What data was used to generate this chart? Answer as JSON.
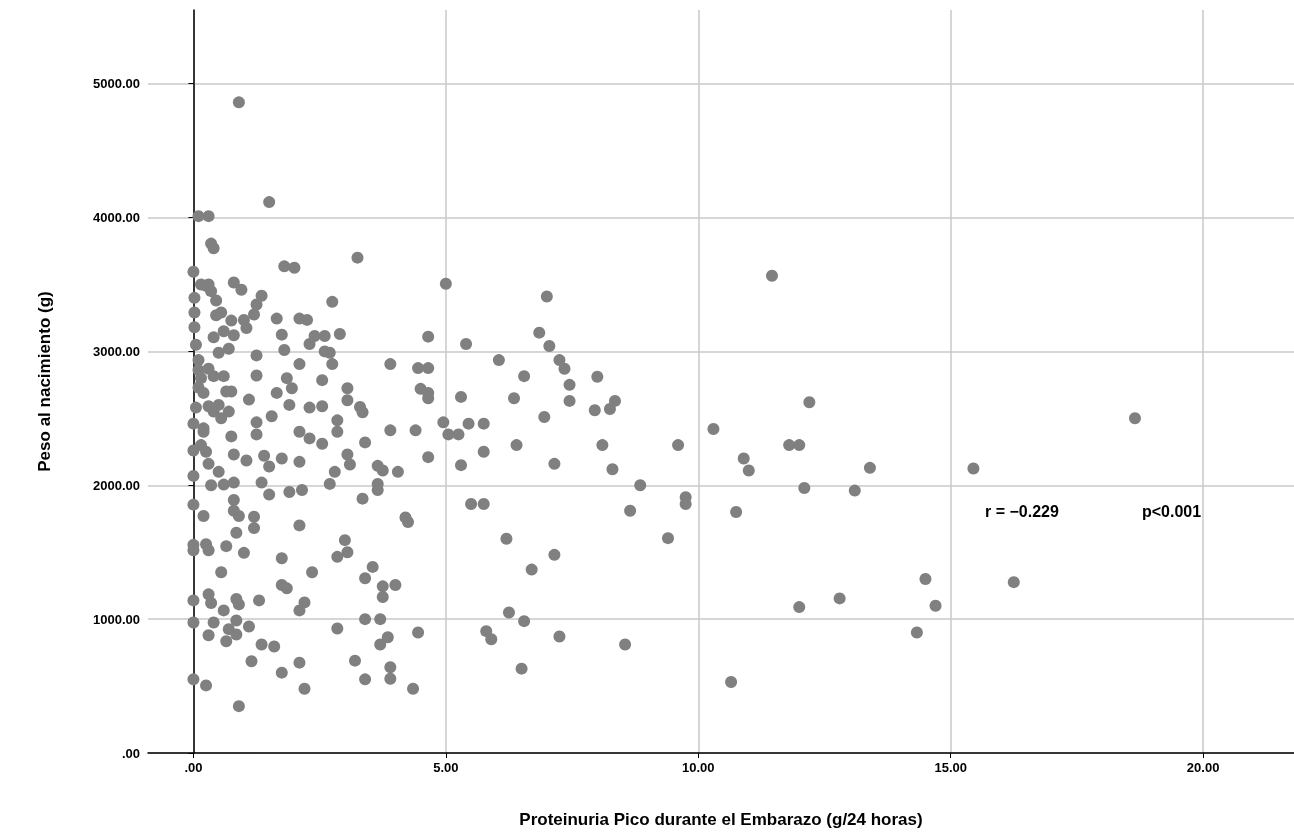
{
  "chart_data": {
    "type": "scatter",
    "xlabel": "Proteinuria Pico durante el Embarazo (g/24 horas)",
    "ylabel": "Peso al nacimiento (g)",
    "annotations": [
      "r = −0.229",
      "p<0.001"
    ],
    "xlim": [
      -0.9,
      21.8
    ],
    "ylim": [
      0,
      5550
    ],
    "xticks": [
      {
        "value": 0,
        "label": ".00"
      },
      {
        "value": 5,
        "label": "5.00"
      },
      {
        "value": 10,
        "label": "10.00"
      },
      {
        "value": 15,
        "label": "15.00"
      },
      {
        "value": 20,
        "label": "20.00"
      }
    ],
    "yticks": [
      {
        "value": 0,
        "label": ".00"
      },
      {
        "value": 1000,
        "label": "1000.00"
      },
      {
        "value": 2000,
        "label": "2000.00"
      },
      {
        "value": 3000,
        "label": "3000.00"
      },
      {
        "value": 4000,
        "label": "4000.00"
      },
      {
        "value": 5000,
        "label": "5000.00"
      }
    ],
    "grid": true,
    "marker": "circle",
    "series": [
      {
        "color": "#808080",
        "x": [
          18.65,
          15.45,
          16.25,
          14.5,
          14.7,
          14.33,
          13.4,
          13.1,
          12.8,
          12.0,
          12.2,
          12.1,
          11.46,
          11.8,
          12.0,
          10.9,
          11.0,
          10.75,
          10.65,
          10.3,
          9.6,
          9.75,
          9.75,
          9.4,
          8.85,
          8.65,
          8.55,
          8.35,
          8.25,
          8.3,
          8.1,
          8.0,
          7.95,
          7.45,
          7.45,
          7.35,
          7.25,
          7.05,
          6.85,
          7.0,
          6.95,
          7.15,
          7.15,
          7.25,
          6.7,
          6.55,
          6.4,
          6.35,
          6.25,
          6.55,
          6.5,
          6.2,
          6.05,
          5.75,
          5.75,
          5.75,
          5.45,
          5.5,
          5.3,
          5.3,
          5.4,
          5.0,
          5.8,
          5.9,
          5.25,
          5.05,
          4.95,
          4.65,
          4.65,
          4.65,
          4.65,
          4.65,
          4.45,
          4.5,
          4.4,
          4.45,
          4.35,
          4.25,
          4.2,
          4.05,
          4.0,
          3.9,
          3.9,
          3.85,
          3.9,
          3.9,
          3.75,
          3.75,
          3.7,
          3.7,
          3.65,
          3.75,
          3.65,
          3.65,
          3.55,
          3.4,
          3.4,
          3.4,
          3.4,
          3.35,
          3.3,
          3.25,
          3.35,
          3.2,
          3.05,
          3.05,
          3.1,
          3.05,
          3.0,
          3.05,
          2.85,
          2.85,
          2.85,
          2.85,
          2.9,
          2.8,
          2.7,
          2.75,
          2.7,
          2.75,
          2.6,
          2.55,
          2.55,
          2.6,
          2.55,
          2.4,
          2.3,
          2.35,
          2.3,
          2.3,
          2.1,
          2.1,
          2.25,
          2.1,
          2.1,
          2.15,
          2.1,
          2.1,
          2.1,
          2.2,
          2.2,
          2.0,
          1.8,
          1.9,
          1.85,
          1.75,
          1.75,
          1.75,
          1.75,
          1.85,
          1.95,
          1.8,
          1.75,
          1.65,
          1.9,
          1.65,
          1.55,
          1.5,
          1.6,
          1.35,
          1.3,
          1.5,
          1.5,
          1.4,
          1.35,
          1.25,
          1.25,
          1.25,
          1.35,
          1.25,
          1.2,
          1.25,
          1.2,
          1.2,
          1.15,
          1.1,
          1.05,
          1.1,
          1.05,
          1.0,
          0.95,
          1.0,
          0.9,
          0.9,
          0.85,
          0.9,
          0.85,
          0.85,
          0.85,
          0.8,
          0.9,
          0.8,
          0.8,
          0.8,
          0.75,
          0.75,
          0.8,
          0.6,
          0.65,
          0.7,
          0.65,
          0.55,
          0.6,
          0.4,
          0.35,
          0.3,
          0.25,
          0.3,
          0.25,
          0.3,
          0.35,
          0.3,
          0.25,
          0.2,
          0.2,
          0.0,
          0.0,
          0.0,
          0.0,
          0.0,
          0.0,
          0.0,
          0.0,
          0.0,
          0.0,
          0.1,
          0.3,
          0.35,
          0.4,
          0.02,
          0.02,
          0.02,
          0.05,
          0.1,
          0.15,
          0.2,
          0.05,
          0.25,
          0.35,
          0.45,
          0.55,
          0.6,
          0.5,
          0.4,
          0.6,
          0.3,
          0.5,
          0.7,
          0.55,
          0.1,
          0.7,
          0.8,
          0.45,
          0.75,
          0.4,
          0.15,
          0.3,
          0.1,
          0.3,
          0.2,
          0.15,
          0.4,
          0.65,
          0.5
        ],
        "values": [
          2500,
          2125,
          1276,
          1300,
          1100,
          900,
          2130,
          1960,
          1155,
          1090,
          2620,
          1980,
          3565,
          2300,
          2300,
          2200,
          2110,
          1800,
          530,
          2420,
          2300,
          1910,
          1860,
          1605,
          2000,
          1810,
          810,
          2630,
          2570,
          2120,
          2300,
          2810,
          2560,
          2750,
          2630,
          2870,
          2935,
          3040,
          3140,
          3410,
          2510,
          2160,
          1480,
          870,
          1370,
          2815,
          2300,
          2650,
          1050,
          985,
          630,
          1600,
          2935,
          2250,
          2460,
          1860,
          2460,
          1860,
          2150,
          2660,
          3055,
          3505,
          910,
          850,
          2380,
          2380,
          2470,
          2690,
          2650,
          2875,
          3110,
          2210,
          2875,
          2720,
          2410,
          900,
          480,
          1725,
          1760,
          2100,
          1255,
          2905,
          2410,
          865,
          640,
          555,
          1245,
          1165,
          1000,
          810,
          2145,
          2110,
          1965,
          2010,
          1390,
          2320,
          1305,
          1000,
          550,
          2545,
          2585,
          3700,
          1900,
          690,
          2635,
          2725,
          2155,
          2230,
          1590,
          1500,
          1465,
          930,
          2485,
          2400,
          3130,
          2100,
          2010,
          2905,
          2990,
          3370,
          3000,
          2785,
          2590,
          3115,
          2310,
          3115,
          3055,
          1350,
          2580,
          2350,
          2905,
          3245,
          3235,
          2400,
          2175,
          1965,
          1700,
          1065,
          675,
          480,
          1125,
          3625,
          3635,
          1950,
          1230,
          1255,
          600,
          1455,
          2200,
          2800,
          2725,
          3010,
          3125,
          3245,
          2600,
          2690,
          2515,
          4115,
          795,
          810,
          1140,
          1930,
          2140,
          2220,
          2020,
          2470,
          2820,
          2970,
          3415,
          3350,
          3275,
          2380,
          1765,
          1680,
          685,
          945,
          2185,
          2640,
          3175,
          3235,
          3460,
          1495,
          4860,
          350,
          1150,
          1110,
          990,
          885,
          1645,
          1810,
          1770,
          1890,
          2020,
          2230,
          2365,
          2700,
          3515,
          2005,
          1545,
          925,
          835,
          1350,
          1065,
          975,
          1120,
          880,
          505,
          1185,
          1560,
          1515,
          2000,
          2160,
          2250,
          2425,
          1770,
          550,
          975,
          1140,
          1515,
          1555,
          1855,
          2070,
          2260,
          2460,
          3595,
          4010,
          4010,
          3805,
          3770,
          3400,
          3290,
          3180,
          3050,
          2935,
          2800,
          2690,
          2580,
          3490,
          3450,
          3380,
          3290,
          3150,
          2990,
          2815,
          2815,
          2590,
          2600,
          2550,
          2500,
          2730,
          3020,
          3120,
          3270,
          3230,
          3105,
          3500,
          3500,
          2860,
          2870,
          2400,
          2300,
          2550,
          2700,
          2100
        ]
      }
    ]
  }
}
